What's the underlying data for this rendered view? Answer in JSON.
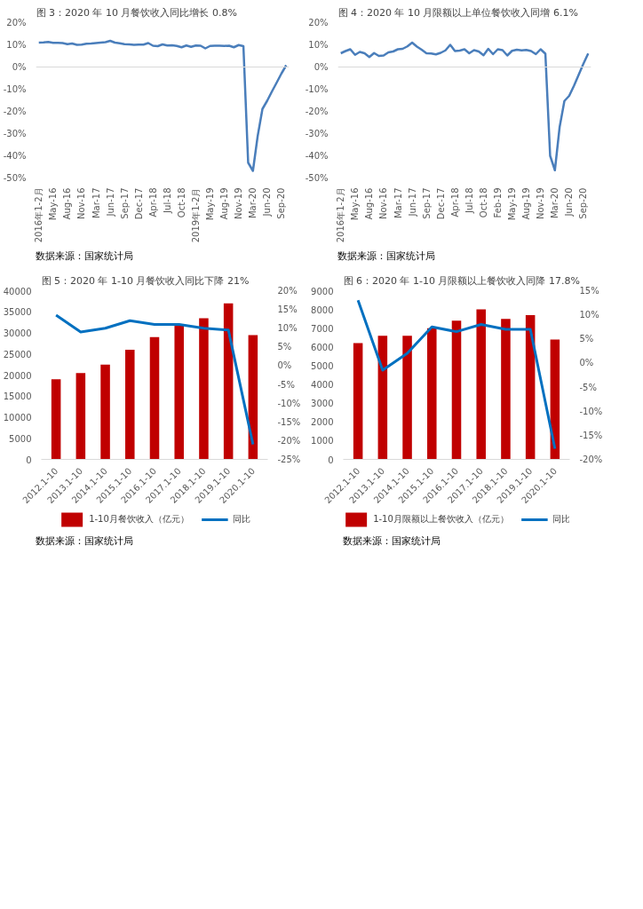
{
  "chart_data": [
    {
      "type": "line",
      "title": "图 3：2020 年 10 月餐饮收入同比增长 0.8%",
      "categories": [
        "2016年1-2月",
        null,
        null,
        "May-16",
        null,
        null,
        "Aug-16",
        null,
        null,
        "Nov-16",
        null,
        null,
        "Mar-17",
        null,
        null,
        "Jun-17",
        null,
        null,
        "Sep-17",
        null,
        null,
        "Dec-17",
        null,
        null,
        "Apr-18",
        null,
        null,
        "Jul-18",
        null,
        null,
        "Oct-18",
        null,
        null,
        "2019年1-2月",
        null,
        null,
        "May-19",
        null,
        null,
        "Aug-19",
        null,
        null,
        "Nov-19",
        null,
        null,
        "Mar-20",
        null,
        null,
        "Jun-20",
        null,
        null,
        "Sep-20",
        null
      ],
      "series": [
        {
          "color": "#4a7ebb",
          "values": [
            11.0,
            11.1,
            11.3,
            10.9,
            10.9,
            10.8,
            10.3,
            10.6,
            10.0,
            10.1,
            10.5,
            10.6,
            10.8,
            11.0,
            11.2,
            11.8,
            11.0,
            10.7,
            10.3,
            10.2,
            10.0,
            10.1,
            10.1,
            10.8,
            9.6,
            9.4,
            10.2,
            9.7,
            9.8,
            9.5,
            8.9,
            9.7,
            9.1,
            9.7,
            9.6,
            8.4,
            9.5,
            9.6,
            9.6,
            9.5,
            9.6,
            8.9,
            9.9,
            9.4,
            -43.1,
            -46.8,
            -31.1,
            -18.9,
            -15.2,
            -11.0,
            -7.0,
            -2.9,
            0.8
          ]
        }
      ],
      "ylim": [
        -50,
        20
      ],
      "yticks": [
        {
          "value": -50,
          "label": "-50%"
        },
        {
          "value": -40,
          "label": "-40%"
        },
        {
          "value": -30,
          "label": "-30%"
        },
        {
          "value": -20,
          "label": "-20%"
        },
        {
          "value": -10,
          "label": "-10%"
        },
        {
          "value": 0,
          "label": "0%"
        },
        {
          "value": 10,
          "label": "10%"
        },
        {
          "value": 20,
          "label": "20%"
        }
      ],
      "ref_lines": [
        {
          "axis": "y",
          "value": 0,
          "color": "#d9d9d9"
        }
      ],
      "annotations": [
        "数据来源：国家统计局"
      ]
    },
    {
      "type": "line",
      "title": "图 4：2020 年 10 月限额以上单位餐饮收入同增 6.1%",
      "categories": [
        "2016年1-2月",
        null,
        null,
        "May-16",
        null,
        null,
        "Aug-16",
        null,
        null,
        "Nov-16",
        null,
        null,
        "Mar-17",
        null,
        null,
        "Jun-17",
        null,
        null,
        "Sep-17",
        null,
        null,
        "Dec-17",
        null,
        null,
        "Apr-18",
        null,
        null,
        "Jul-18",
        null,
        null,
        "Oct-18",
        null,
        null,
        "Feb-19",
        null,
        null,
        "May-19",
        null,
        null,
        "Aug-19",
        null,
        null,
        "Nov-19",
        null,
        null,
        "Mar-20",
        null,
        null,
        "Jun-20",
        null,
        null,
        "Sep-20",
        null
      ],
      "series": [
        {
          "color": "#4a7ebb",
          "values": [
            6.2,
            7.2,
            8.0,
            5.5,
            6.8,
            6.2,
            4.5,
            6.3,
            5.0,
            5.2,
            6.6,
            7.0,
            8.0,
            8.2,
            9.3,
            11.0,
            9.2,
            7.8,
            6.2,
            6.1,
            5.7,
            6.4,
            7.5,
            10.0,
            7.2,
            7.4,
            8.0,
            6.2,
            7.6,
            7.0,
            5.3,
            8.2,
            5.8,
            8.0,
            7.6,
            5.2,
            7.3,
            7.8,
            7.5,
            7.7,
            7.2,
            5.8,
            8.0,
            6.0,
            -40.0,
            -46.5,
            -27.0,
            -15.3,
            -13.0,
            -8.5,
            -3.5,
            1.5,
            6.1
          ]
        }
      ],
      "ylim": [
        -50,
        20
      ],
      "yticks": [
        {
          "value": -50,
          "label": "-50%"
        },
        {
          "value": -40,
          "label": "-40%"
        },
        {
          "value": -30,
          "label": "-30%"
        },
        {
          "value": -20,
          "label": "-20%"
        },
        {
          "value": -10,
          "label": "-10%"
        },
        {
          "value": 0,
          "label": "0%"
        },
        {
          "value": 10,
          "label": "10%"
        },
        {
          "value": 20,
          "label": "20%"
        }
      ],
      "ref_lines": [
        {
          "axis": "y",
          "value": 0,
          "color": "#d9d9d9"
        }
      ],
      "annotations": [
        "数据来源：国家统计局"
      ]
    },
    {
      "type": "bar",
      "title": "图 5：2020 年 1-10 月餐饮收入同比下降 21%",
      "categories": [
        "2012.1-10",
        "2013.1-10",
        "2014.1-10",
        "2015.1-10",
        "2016.1-10",
        "2017.1-10",
        "2018.1-10",
        "2019.1-10",
        "2020.1-10"
      ],
      "series": [
        {
          "name": "1-10月餐饮收入（亿元）",
          "type": "bar",
          "color": "#c00000",
          "values": [
            19000,
            20500,
            22500,
            26000,
            29000,
            32000,
            33500,
            37000,
            29500
          ]
        },
        {
          "name": "同比",
          "type": "line",
          "axis": "y2",
          "color": "#0070c0",
          "values": [
            13.5,
            9,
            10,
            12,
            11,
            11,
            10,
            9.5,
            -21
          ]
        }
      ],
      "ylim": [
        0,
        40000
      ],
      "yticks": [
        0,
        5000,
        10000,
        15000,
        20000,
        25000,
        30000,
        35000,
        40000
      ],
      "y2lim": [
        -25,
        20
      ],
      "y2ticks": [
        {
          "value": -25,
          "label": "-25%"
        },
        {
          "value": -20,
          "label": "-20%"
        },
        {
          "value": -15,
          "label": "-15%"
        },
        {
          "value": -10,
          "label": "-10%"
        },
        {
          "value": -5,
          "label": "-5%"
        },
        {
          "value": 0,
          "label": "0%"
        },
        {
          "value": 5,
          "label": "5%"
        },
        {
          "value": 10,
          "label": "10%"
        },
        {
          "value": 15,
          "label": "15%"
        },
        {
          "value": 20,
          "label": "20%"
        }
      ],
      "legend": "bottom",
      "annotations": [
        "数据来源：国家统计局"
      ]
    },
    {
      "type": "bar",
      "title": "图 6：2020 年 1-10 月限额以上餐饮收入同降 17.8%",
      "categories": [
        "2012.1-10",
        "2013.1-10",
        "2014.1-10",
        "2015.1-10",
        "2016.1-10",
        "2017.1-10",
        "2018.1-10",
        "2019.1-10",
        "2020.1-10"
      ],
      "series": [
        {
          "name": "1-10月限额以上餐饮收入（亿元）",
          "type": "bar",
          "color": "#c00000",
          "values": [
            6200,
            6600,
            6600,
            7000,
            7400,
            8000,
            7500,
            7700,
            6400
          ]
        },
        {
          "name": "同比",
          "type": "line",
          "axis": "y2",
          "color": "#0070c0",
          "values": [
            13,
            -1.5,
            2,
            7.5,
            6.5,
            8,
            7,
            7,
            -17.8
          ]
        }
      ],
      "ylim": [
        0,
        9000
      ],
      "yticks": [
        0,
        1000,
        2000,
        3000,
        4000,
        5000,
        6000,
        7000,
        8000,
        9000
      ],
      "y2lim": [
        -20,
        15
      ],
      "y2ticks": [
        {
          "value": -20,
          "label": "-20%"
        },
        {
          "value": -15,
          "label": "-15%"
        },
        {
          "value": -10,
          "label": "-10%"
        },
        {
          "value": -5,
          "label": "-5%"
        },
        {
          "value": 0,
          "label": "0%"
        },
        {
          "value": 5,
          "label": "5%"
        },
        {
          "value": 10,
          "label": "10%"
        },
        {
          "value": 15,
          "label": "15%"
        }
      ],
      "legend": "bottom",
      "annotations": [
        "数据来源：国家统计局"
      ]
    }
  ]
}
